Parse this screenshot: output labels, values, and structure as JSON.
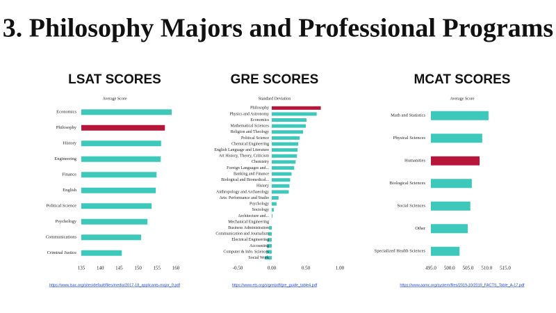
{
  "title": "3. Philosophy Majors and Professional Programs",
  "chart_data": [
    {
      "type": "bar",
      "orientation": "horizontal",
      "title": "LSAT SCORES",
      "subtitle": "Average Score",
      "source": "https://www.lsac.org/sites/default/files/media/2017-18_applicants-major_0.pdf",
      "categories": [
        "Economics",
        "Philosophy",
        "History",
        "Engineering",
        "Finance",
        "English",
        "Political Science",
        "Psychology",
        "Communications",
        "Criminal Justice"
      ],
      "values": [
        158.9,
        157.1,
        156.1,
        156.0,
        154.9,
        154.7,
        153.6,
        152.5,
        150.8,
        145.7
      ],
      "colors": [
        "#3cc8bb",
        "#b5163a",
        "#3cc8bb",
        "#3cc8bb",
        "#3cc8bb",
        "#3cc8bb",
        "#3cc8bb",
        "#3cc8bb",
        "#3cc8bb",
        "#3cc8bb"
      ],
      "xlim": [
        135,
        160
      ],
      "xticks": [
        135,
        140,
        145,
        150,
        155,
        160
      ],
      "grid": false
    },
    {
      "type": "bar",
      "orientation": "horizontal",
      "title": "GRE SCORES",
      "subtitle": "Standard Deviation",
      "source": "https://www.ets.org/s/gre/pdf/gre_guide_table4.pdf",
      "categories": [
        "Philosophy",
        "Physics and Astronomy",
        "Economics",
        "Mathematical Sciences",
        "Religion and Theology",
        "Political Science",
        "Chemical Engineering",
        "English Language and Literature",
        "Art History, Theory, Criticism",
        "Chemistry",
        "Foreign Languages and...",
        "Banking and Finance",
        "Biological and Biomedical...",
        "History",
        "Anthropology and Archaeology",
        "Arts: Performance and Studio",
        "Psychology",
        "Sociology",
        "Architecture and...",
        "Mechanical Engineering",
        "Business Administration",
        "Communication and Journalism",
        "Electrical Engineering",
        "Accounting",
        "Computer & Info. Sciences",
        "Social Work"
      ],
      "values": [
        0.72,
        0.66,
        0.51,
        0.5,
        0.46,
        0.41,
        0.39,
        0.38,
        0.37,
        0.35,
        0.33,
        0.29,
        0.27,
        0.26,
        0.25,
        0.1,
        0.07,
        0.03,
        0.01,
        0.0,
        -0.04,
        -0.05,
        -0.06,
        -0.07,
        -0.08,
        -0.1
      ],
      "colors": [
        "#b5163a",
        "#3cc8bb",
        "#3cc8bb",
        "#3cc8bb",
        "#3cc8bb",
        "#3cc8bb",
        "#3cc8bb",
        "#3cc8bb",
        "#3cc8bb",
        "#3cc8bb",
        "#3cc8bb",
        "#3cc8bb",
        "#3cc8bb",
        "#3cc8bb",
        "#3cc8bb",
        "#3cc8bb",
        "#3cc8bb",
        "#3cc8bb",
        "#3cc8bb",
        "#3cc8bb",
        "#3cc8bb",
        "#3cc8bb",
        "#3cc8bb",
        "#3cc8bb",
        "#3cc8bb",
        "#3cc8bb"
      ],
      "xlim": [
        -0.5,
        1.0
      ],
      "xticks": [
        {
          "value": -0.5,
          "label": "-0.50"
        },
        {
          "value": 0,
          "label": "0.00"
        },
        {
          "value": 0.5,
          "label": "0.50"
        },
        {
          "value": 1.0,
          "label": "1.00"
        }
      ],
      "grid": false
    },
    {
      "type": "bar",
      "orientation": "horizontal",
      "title": "MCAT SCORES",
      "subtitle": "Average Score",
      "source": "https://www.aamc.org/system/files/2019-10/2019_FACTS_Table_A-17.pdf",
      "categories": [
        "Math and Statistics",
        "Physical Sciences",
        "Humanities",
        "Biological Sciences",
        "Social Sciences",
        "Other",
        "Specialized Health Sciences"
      ],
      "values": [
        510.5,
        508.8,
        508.1,
        506.0,
        505.6,
        504.9,
        502.7
      ],
      "colors": [
        "#3cc8bb",
        "#3cc8bb",
        "#b5163a",
        "#3cc8bb",
        "#3cc8bb",
        "#3cc8bb",
        "#3cc8bb"
      ],
      "xlim": [
        495,
        515
      ],
      "xticks": [
        {
          "value": 495,
          "label": "495.0"
        },
        {
          "value": 500,
          "label": "500.0"
        },
        {
          "value": 505,
          "label": "505.0"
        },
        {
          "value": 510,
          "label": "510.0"
        },
        {
          "value": 515,
          "label": "515.0"
        }
      ],
      "grid": false
    }
  ]
}
